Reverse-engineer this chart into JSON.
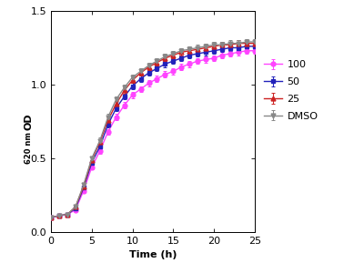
{
  "time": [
    0,
    1,
    2,
    3,
    4,
    5,
    6,
    7,
    8,
    9,
    10,
    11,
    12,
    13,
    14,
    15,
    16,
    17,
    18,
    19,
    20,
    21,
    22,
    23,
    24,
    25
  ],
  "series": {
    "100": {
      "values": [
        0.1,
        0.11,
        0.12,
        0.15,
        0.28,
        0.44,
        0.55,
        0.68,
        0.78,
        0.86,
        0.93,
        0.97,
        1.01,
        1.04,
        1.07,
        1.09,
        1.12,
        1.14,
        1.16,
        1.17,
        1.18,
        1.2,
        1.21,
        1.22,
        1.23,
        1.23
      ],
      "errors": [
        0.005,
        0.005,
        0.005,
        0.01,
        0.015,
        0.015,
        0.02,
        0.02,
        0.02,
        0.02,
        0.02,
        0.02,
        0.02,
        0.02,
        0.02,
        0.02,
        0.02,
        0.02,
        0.02,
        0.02,
        0.02,
        0.02,
        0.02,
        0.02,
        0.02,
        0.02
      ],
      "color": "#FF44FF",
      "marker": "o",
      "label": "100"
    },
    "50": {
      "values": [
        0.1,
        0.11,
        0.12,
        0.16,
        0.3,
        0.47,
        0.58,
        0.73,
        0.84,
        0.92,
        0.99,
        1.04,
        1.08,
        1.11,
        1.14,
        1.16,
        1.18,
        1.2,
        1.21,
        1.22,
        1.23,
        1.24,
        1.25,
        1.25,
        1.26,
        1.26
      ],
      "errors": [
        0.005,
        0.005,
        0.005,
        0.01,
        0.015,
        0.015,
        0.02,
        0.02,
        0.02,
        0.02,
        0.02,
        0.02,
        0.02,
        0.02,
        0.02,
        0.02,
        0.02,
        0.02,
        0.02,
        0.02,
        0.02,
        0.02,
        0.02,
        0.02,
        0.02,
        0.02
      ],
      "color": "#2222BB",
      "marker": "s",
      "label": "50"
    },
    "25": {
      "values": [
        0.1,
        0.11,
        0.12,
        0.17,
        0.31,
        0.49,
        0.61,
        0.76,
        0.87,
        0.96,
        1.03,
        1.08,
        1.12,
        1.15,
        1.18,
        1.2,
        1.22,
        1.23,
        1.24,
        1.25,
        1.26,
        1.27,
        1.27,
        1.28,
        1.28,
        1.28
      ],
      "errors": [
        0.005,
        0.005,
        0.005,
        0.01,
        0.015,
        0.015,
        0.02,
        0.02,
        0.02,
        0.02,
        0.02,
        0.02,
        0.02,
        0.02,
        0.02,
        0.02,
        0.02,
        0.02,
        0.02,
        0.02,
        0.02,
        0.02,
        0.02,
        0.02,
        0.02,
        0.02
      ],
      "color": "#CC2222",
      "marker": "^",
      "label": "25"
    },
    "DMSO": {
      "values": [
        0.1,
        0.11,
        0.12,
        0.17,
        0.32,
        0.5,
        0.62,
        0.78,
        0.9,
        0.98,
        1.05,
        1.09,
        1.13,
        1.16,
        1.19,
        1.21,
        1.23,
        1.24,
        1.25,
        1.26,
        1.27,
        1.27,
        1.28,
        1.28,
        1.29,
        1.29
      ],
      "errors": [
        0.005,
        0.005,
        0.005,
        0.01,
        0.015,
        0.015,
        0.02,
        0.02,
        0.02,
        0.02,
        0.02,
        0.02,
        0.02,
        0.02,
        0.02,
        0.02,
        0.02,
        0.02,
        0.02,
        0.02,
        0.02,
        0.02,
        0.02,
        0.02,
        0.02,
        0.02
      ],
      "color": "#888888",
      "marker": "v",
      "label": "DMSO"
    }
  },
  "xlabel": "Time (h)",
  "ylabel": "OD",
  "ylabel_sub": "620 nm",
  "xlim": [
    0,
    25
  ],
  "ylim": [
    0.0,
    1.5
  ],
  "yticks": [
    0.0,
    0.5,
    1.0,
    1.5
  ],
  "xticks": [
    0,
    5,
    10,
    15,
    20,
    25
  ],
  "legend_order": [
    "100",
    "50",
    "25",
    "DMSO"
  ],
  "background_color": "#FFFFFF"
}
